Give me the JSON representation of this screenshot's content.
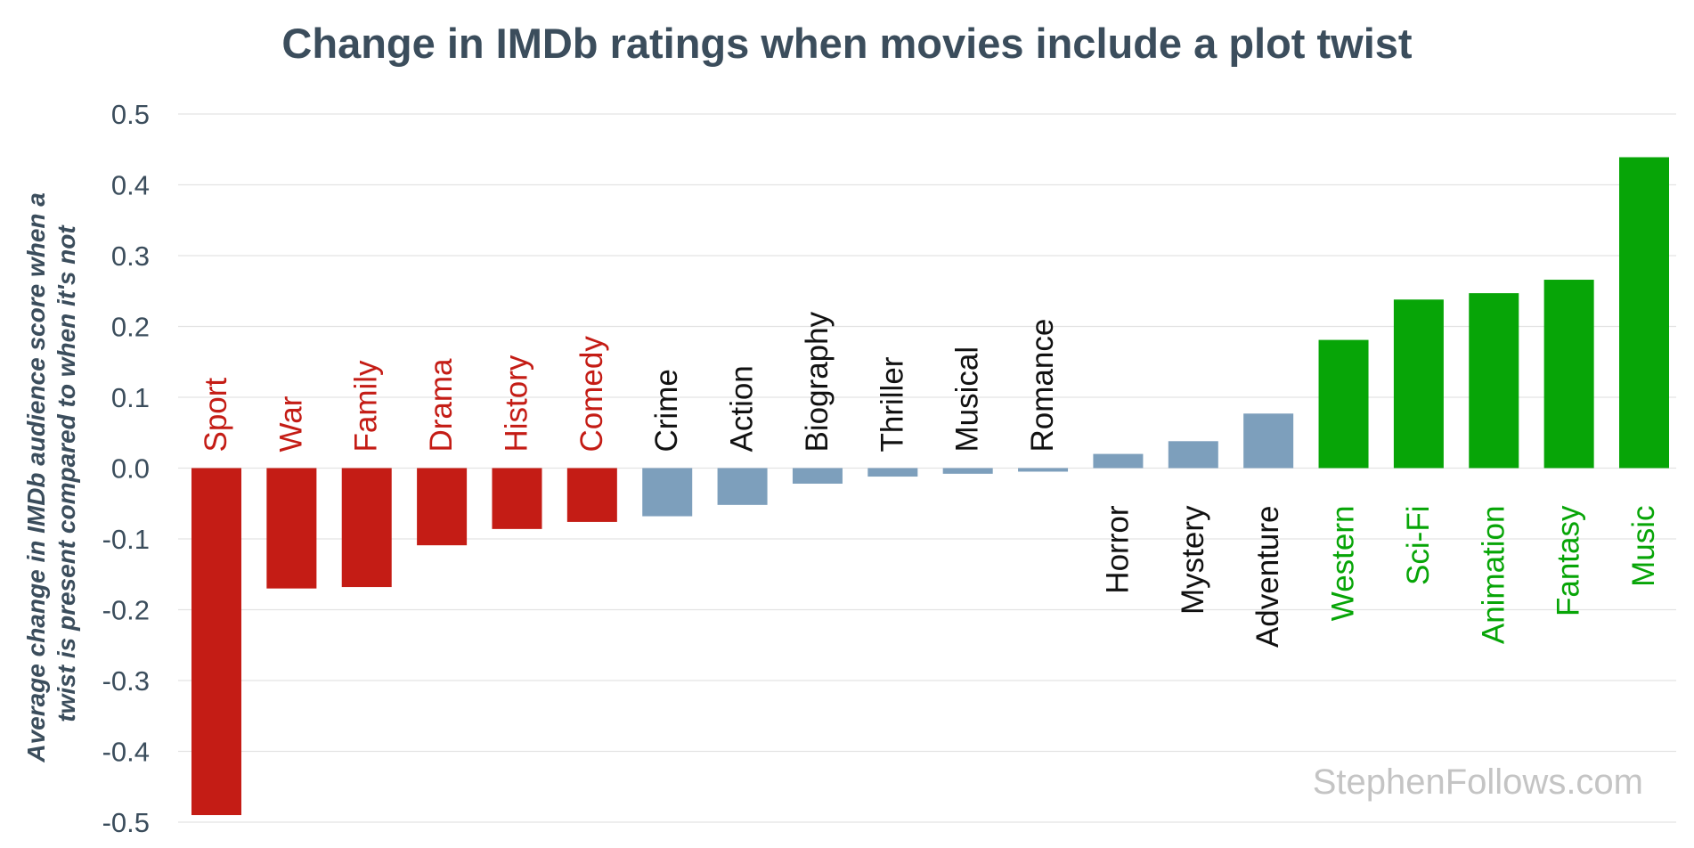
{
  "chart_data": {
    "type": "bar",
    "title": "Change in IMDb ratings when movies include a plot twist",
    "ylabel_lines": [
      "Average change in IMDb audience score when a",
      "twist is present compared to when it's not"
    ],
    "xlabel": "",
    "ylim": [
      -0.5,
      0.5
    ],
    "yticks": [
      "0.5",
      "0.4",
      "0.3",
      "0.2",
      "0.1",
      "0.0",
      "-0.1",
      "-0.2",
      "-0.3",
      "-0.4",
      "-0.5"
    ],
    "ytick_values": [
      0.5,
      0.4,
      0.3,
      0.2,
      0.1,
      0.0,
      -0.1,
      -0.2,
      -0.3,
      -0.4,
      -0.5
    ],
    "grid": true,
    "legend": "none",
    "categories": [
      "Sport",
      "War",
      "Family",
      "Drama",
      "History",
      "Comedy",
      "Crime",
      "Action",
      "Biography",
      "Thriller",
      "Musical",
      "Romance",
      "Horror",
      "Mystery",
      "Adventure",
      "Western",
      "Sci-Fi",
      "Animation",
      "Fantasy",
      "Music"
    ],
    "values": [
      -0.49,
      -0.17,
      -0.168,
      -0.109,
      -0.086,
      -0.076,
      -0.068,
      -0.052,
      -0.022,
      -0.012,
      -0.008,
      -0.005,
      0.02,
      0.038,
      0.077,
      0.181,
      0.238,
      0.247,
      0.266,
      0.439
    ],
    "groups": [
      "neg",
      "neg",
      "neg",
      "neg",
      "neg",
      "neg",
      "neutral",
      "neutral",
      "neutral",
      "neutral",
      "neutral",
      "neutral",
      "neutral",
      "neutral",
      "neutral",
      "pos",
      "pos",
      "pos",
      "pos",
      "pos"
    ],
    "colors": {
      "neg_bar": "#c41c15",
      "neg_label": "#c41c15",
      "neutral_bar": "#7d9fbc",
      "neutral_label": "#111111",
      "pos_bar": "#07a507",
      "pos_label": "#07a507",
      "title": "#3b4d5c",
      "grid": "#e3e3e3"
    }
  },
  "watermark": "StephenFollows.com"
}
